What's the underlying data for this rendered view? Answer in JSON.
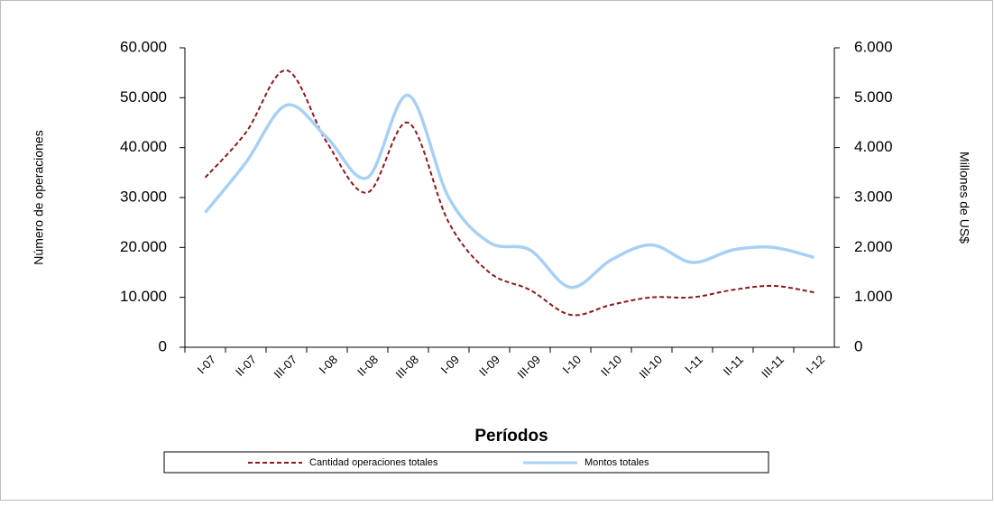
{
  "chart_data": {
    "type": "line",
    "x_label": "Períodos",
    "y_label": "Número de operaciones",
    "y2_label": "Millones de US$",
    "categories": [
      "I-07",
      "II-07",
      "III-07",
      "I-08",
      "II-08",
      "III-08",
      "I-09",
      "II-09",
      "III-09",
      "I-10",
      "II-10",
      "III-10",
      "I-11",
      "II-11",
      "III-11",
      "I-12"
    ],
    "series": [
      {
        "name": "Cantidad operaciones totales",
        "color": "#8b1a1a",
        "dashed": true,
        "values": [
          34000,
          43000,
          55500,
          41000,
          31000,
          45000,
          25000,
          15000,
          11500,
          6500,
          8500,
          10000,
          10000,
          11500,
          12300,
          11000
        ]
      },
      {
        "name": "Montos totales",
        "color": "#a8d0f5",
        "axis": "y2",
        "values": [
          2700,
          3700,
          4850,
          4200,
          3400,
          5050,
          3000,
          2100,
          1950,
          1200,
          1750,
          2050,
          1700,
          1950,
          2000,
          1800
        ]
      }
    ],
    "ylim": [
      0,
      60000
    ],
    "yticks": [
      0,
      {
        "value": 10000,
        "label": "10.000"
      },
      {
        "value": 20000,
        "label": "20.000"
      },
      {
        "value": 30000,
        "label": "30.000"
      },
      {
        "value": 40000,
        "label": "40.000"
      },
      {
        "value": 50000,
        "label": "50.000"
      },
      {
        "value": 60000,
        "label": "60.000"
      }
    ],
    "y2lim": [
      0,
      6000
    ],
    "y2ticks": [
      0,
      {
        "value": 1000,
        "label": "1.000"
      },
      {
        "value": 2000,
        "label": "2.000"
      },
      {
        "value": 3000,
        "label": "3.000"
      },
      {
        "value": 4000,
        "label": "4.000"
      },
      {
        "value": 5000,
        "label": "5.000"
      },
      {
        "value": 6000,
        "label": "6.000"
      }
    ]
  }
}
